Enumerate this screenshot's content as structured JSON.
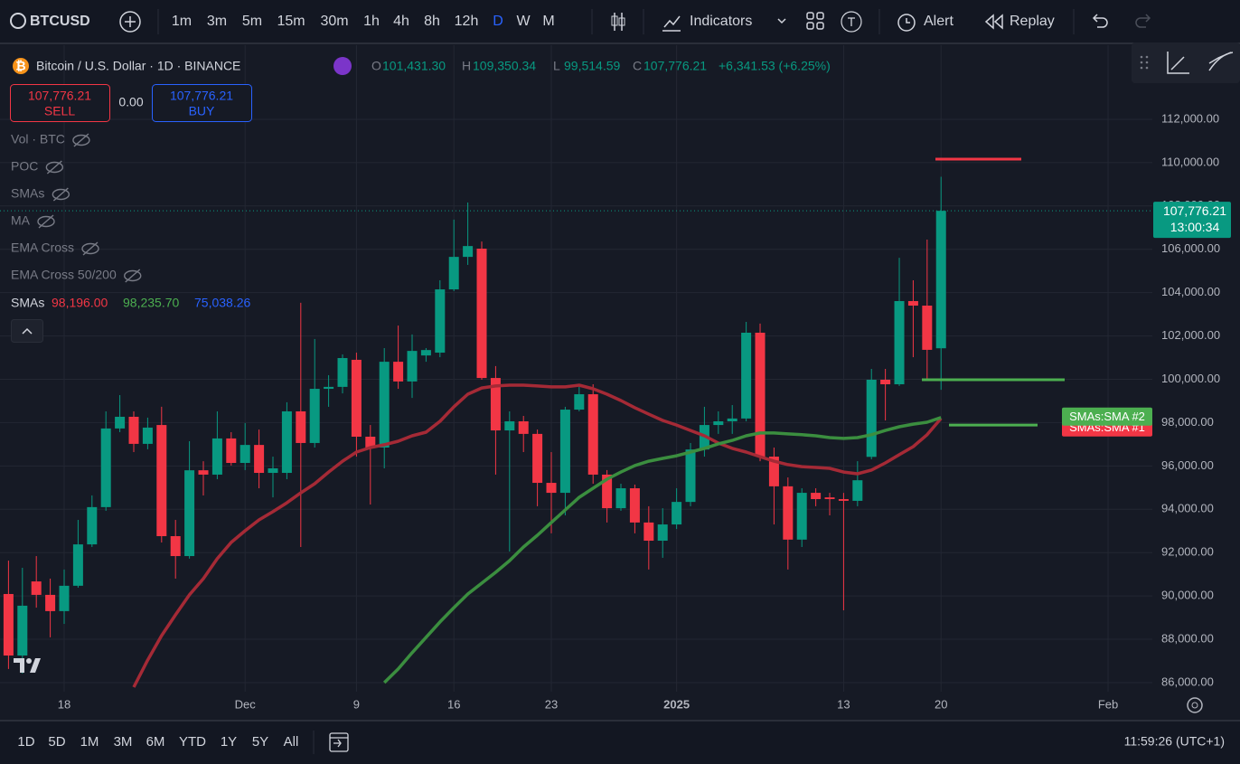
{
  "toolbar": {
    "symbol": "BTCUSD",
    "intervals": [
      "1m",
      "3m",
      "5m",
      "15m",
      "30m",
      "1h",
      "4h",
      "8h",
      "12h",
      "D",
      "W",
      "M"
    ],
    "indicators": "Indicators",
    "alert": "Alert",
    "replay": "Replay"
  },
  "legend": {
    "title": "Bitcoin / U.S. Dollar · 1D · BINANCE",
    "ohlc": [
      {
        "key": "O",
        "value": "101,431.30"
      },
      {
        "key": "H",
        "value": "109,350.34"
      },
      {
        "key": "L",
        "value": "99,514.59"
      },
      {
        "key": "C",
        "value": "107,776.21"
      }
    ],
    "change": "+6,341.53 (+6.25%)"
  },
  "trade": {
    "sell_price": "107,776.21",
    "sell": "SELL",
    "spread": "0.00",
    "buy_price": "107,776.21",
    "buy": "BUY"
  },
  "indicators": [
    "Vol · BTC",
    "POC",
    "SMAs",
    "MA",
    "EMA Cross",
    "EMA Cross 50/200"
  ],
  "sma_legend": {
    "name": "SMAs",
    "values": [
      "98,196.00",
      "98,235.70",
      "75,038.26"
    ],
    "colors": [
      "#f23645",
      "#4caf50",
      "#2962ff"
    ]
  },
  "chart_data": {
    "type": "candlestick",
    "grid": true,
    "up_color": "#089981",
    "down_color": "#f23645",
    "candles": {
      "open": [
        90090,
        87250,
        90670,
        90050,
        89300,
        90470,
        92380,
        94100,
        97730,
        98270,
        97020,
        97890,
        92760,
        91840,
        95800,
        95600,
        97270,
        96140,
        96970,
        95680,
        95680,
        98520,
        97060,
        99560,
        99650,
        100900,
        97350,
        96850,
        100810,
        99900,
        101100,
        101230,
        104150,
        105650,
        106030,
        100060,
        97640,
        98060,
        97480,
        95220,
        94760,
        98600,
        99310,
        95600,
        94050,
        94970,
        93390,
        92550,
        93300,
        94340,
        96760,
        97890,
        98060,
        98190,
        102150,
        96430,
        95060,
        92600,
        94760,
        94550,
        94470,
        94390,
        96420,
        99980,
        99770,
        103610,
        103400,
        101431.3
      ],
      "high": [
        91630,
        91300,
        91840,
        90800,
        91220,
        93510,
        94640,
        98520,
        99270,
        98520,
        98230,
        98730,
        93510,
        97140,
        96220,
        98520,
        97560,
        97980,
        97680,
        96430,
        98940,
        103530,
        101860,
        100190,
        101150,
        101230,
        97890,
        101440,
        102480,
        102070,
        101440,
        104570,
        107370,
        108160,
        106360,
        100610,
        98520,
        98310,
        97680,
        96640,
        98730,
        99650,
        99770,
        95810,
        95180,
        95140,
        94140,
        94050,
        94970,
        97060,
        98730,
        98520,
        98810,
        102650,
        102570,
        96850,
        95470,
        94970,
        94970,
        94760,
        94760,
        96220,
        100480,
        100480,
        105610,
        104570,
        106450,
        109350.34
      ],
      "low": [
        86630,
        86420,
        89460,
        88090,
        88710,
        90380,
        92260,
        93930,
        97560,
        96640,
        96770,
        92470,
        90800,
        91720,
        94640,
        95390,
        96020,
        95810,
        94970,
        94550,
        95390,
        92260,
        96850,
        98730,
        99350,
        96430,
        94220,
        95890,
        99560,
        99140,
        100810,
        101020,
        104070,
        105280,
        99980,
        95600,
        92050,
        96640,
        94140,
        92890,
        93720,
        98520,
        95180,
        93390,
        93930,
        92890,
        91220,
        91760,
        93090,
        94140,
        96430,
        97480,
        97480,
        98060,
        96220,
        93300,
        91220,
        92260,
        94140,
        93720,
        89340,
        94140,
        96310,
        98100,
        99690,
        101020,
        99980,
        99514.59
      ],
      "close": [
        87250,
        89550,
        90050,
        89300,
        90470,
        92380,
        94100,
        97730,
        98270,
        97020,
        97770,
        92760,
        91840,
        95800,
        95600,
        97270,
        96140,
        96970,
        95680,
        95890,
        98520,
        97060,
        99560,
        99650,
        100980,
        97350,
        96850,
        100810,
        99900,
        101310,
        101350,
        104150,
        105650,
        106150,
        100060,
        97640,
        98060,
        97480,
        95220,
        94760,
        98600,
        99310,
        95600,
        94050,
        94970,
        93390,
        92550,
        93300,
        94340,
        96760,
        97890,
        98060,
        98190,
        102150,
        96430,
        95060,
        92600,
        94760,
        94470,
        94470,
        94390,
        95340,
        99980,
        99770,
        103610,
        103400,
        101360,
        107776.21
      ]
    },
    "series": [
      {
        "name": "SMAs:SMA #1",
        "color": "#a52a36",
        "label_color": "#f23645",
        "values": [
          null,
          null,
          null,
          null,
          null,
          null,
          null,
          null,
          null,
          85790,
          87040,
          88170,
          89130,
          90050,
          90800,
          91720,
          92470,
          93010,
          93510,
          93890,
          94300,
          94760,
          95180,
          95720,
          96220,
          96640,
          96850,
          96980,
          97140,
          97390,
          97560,
          98060,
          98730,
          99310,
          99600,
          99690,
          99730,
          99730,
          99690,
          99650,
          99650,
          99730,
          99560,
          99310,
          99020,
          98690,
          98390,
          98100,
          97890,
          97640,
          97390,
          97060,
          96810,
          96640,
          96430,
          96220,
          96060,
          95970,
          95930,
          95890,
          95720,
          95640,
          95810,
          96140,
          96520,
          96890,
          97440,
          98196
        ]
      },
      {
        "name": "SMAs:SMA #2",
        "color": "#3b8e3f",
        "label_color": "#4caf50",
        "values": [
          null,
          null,
          null,
          null,
          null,
          null,
          null,
          null,
          null,
          null,
          null,
          null,
          null,
          null,
          null,
          null,
          null,
          null,
          null,
          null,
          null,
          null,
          null,
          null,
          null,
          null,
          null,
          86000,
          86630,
          87380,
          88090,
          88800,
          89460,
          90090,
          90590,
          91090,
          91630,
          92260,
          92800,
          93390,
          93970,
          94550,
          94970,
          95390,
          95720,
          96020,
          96220,
          96350,
          96470,
          96640,
          96810,
          97020,
          97180,
          97390,
          97520,
          97520,
          97480,
          97440,
          97390,
          97310,
          97270,
          97310,
          97440,
          97640,
          97810,
          97930,
          98020,
          98235.7
        ]
      }
    ],
    "levels": [
      {
        "value": 110160,
        "color": "#f23645"
      },
      {
        "value": 99980,
        "color": "#4caf50"
      },
      {
        "value": 97890,
        "color": "#4caf50"
      }
    ],
    "last_price": {
      "value": 107776.21,
      "label": "107,776.21"
    },
    "countdown": "13:00:34",
    "ylim": [
      84330,
      115420
    ],
    "yticks": [
      {
        "value": 86000,
        "label": "86,000.00"
      },
      {
        "value": 88000,
        "label": "88,000.00"
      },
      {
        "value": 90000,
        "label": "90,000.00"
      },
      {
        "value": 92000,
        "label": "92,000.00"
      },
      {
        "value": 94000,
        "label": "94,000.00"
      },
      {
        "value": 96000,
        "label": "96,000.00"
      },
      {
        "value": 98000,
        "label": "98,000.00"
      },
      {
        "value": 100000,
        "label": "100,000.00"
      },
      {
        "value": 102000,
        "label": "102,000.00"
      },
      {
        "value": 104000,
        "label": "104,000.00"
      },
      {
        "value": 106000,
        "label": "106,000.00"
      },
      {
        "value": 108000,
        "label": "108,000.00"
      },
      {
        "value": 110000,
        "label": "110,000.00"
      },
      {
        "value": 112000,
        "label": "112,000.00"
      }
    ],
    "xlim": [
      -0.61,
      82.18
    ],
    "xticks": [
      {
        "value": 4,
        "label": "18"
      },
      {
        "value": 17,
        "label": "Dec"
      },
      {
        "value": 25,
        "label": "9"
      },
      {
        "value": 32,
        "label": "16"
      },
      {
        "value": 39,
        "label": "23"
      },
      {
        "value": 48,
        "label": "2025",
        "bold": true
      },
      {
        "value": 60,
        "label": "13"
      },
      {
        "value": 67,
        "label": "20"
      },
      {
        "value": 79,
        "label": "Feb"
      }
    ]
  },
  "ranges": [
    "1D",
    "5D",
    "1M",
    "3M",
    "6M",
    "YTD",
    "1Y",
    "5Y",
    "All"
  ],
  "clock": "11:59:26 (UTC+1)"
}
